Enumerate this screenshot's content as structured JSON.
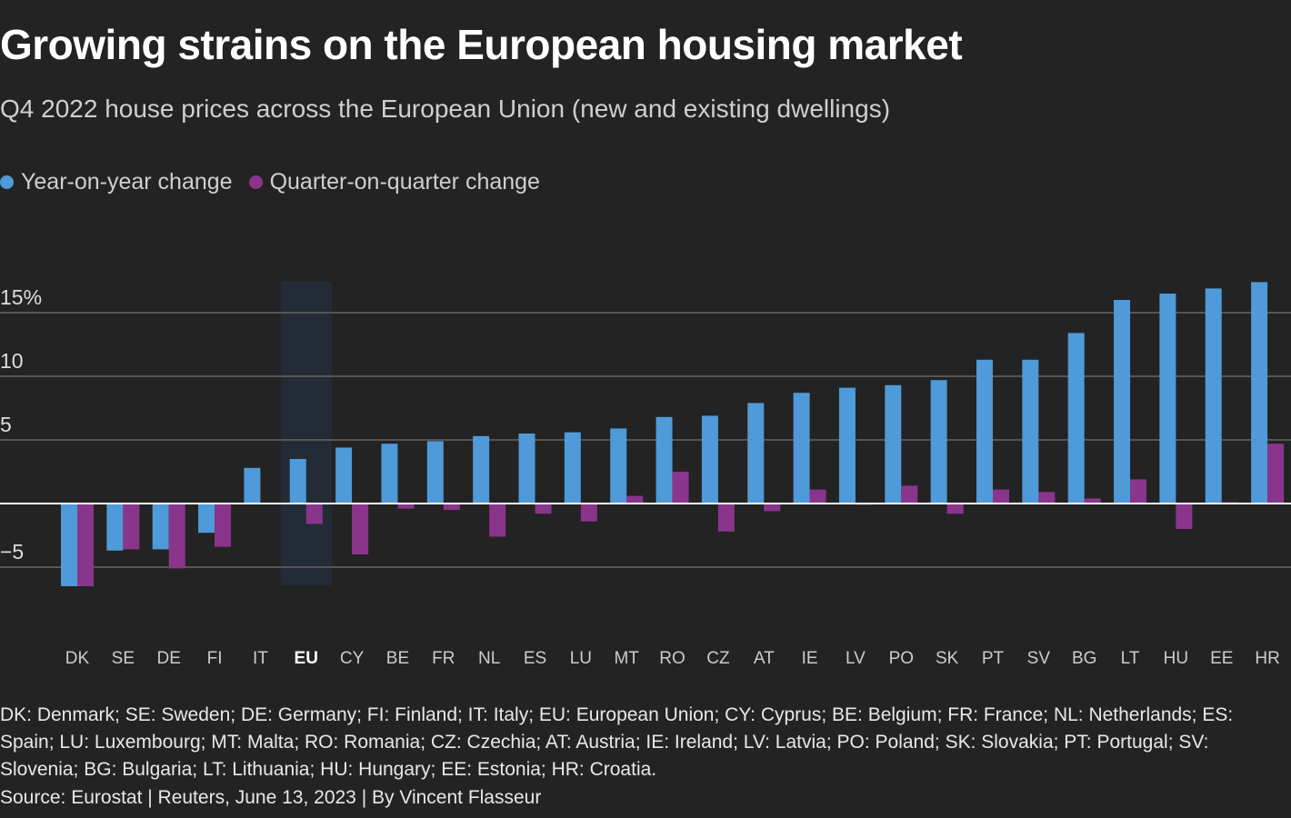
{
  "title": "Growing strains on the European housing market",
  "subtitle": "Q4 2022 house prices across the European Union (new and existing dwellings)",
  "legend": [
    {
      "label": "Year-on-year change",
      "color": "#4f9ad8"
    },
    {
      "label": "Quarter-on-quarter change",
      "color": "#8a358c"
    }
  ],
  "notes": "DK: Denmark; SE: Sweden; DE: Germany; FI: Finland; IT: Italy; EU: European Union; CY: Cyprus; BE: Belgium; FR: France; NL: Netherlands; ES: Spain; LU: Luxembourg; MT: Malta; RO: Romania; CZ: Czechia; AT: Austria; IE: Ireland; LV: Latvia; PO: Poland; SK: Slovakia; PT: Portugal; SV: Slovenia; BG: Bulgaria; LT: Lithuania; HU: Hungary; EE: Estonia; HR: Croatia.",
  "source": "Source: Eurostat | Reuters, June 13, 2023 | By Vincent Flasseur",
  "chart_data": {
    "type": "bar",
    "categories": [
      "DK",
      "SE",
      "DE",
      "FI",
      "IT",
      "EU",
      "CY",
      "BE",
      "FR",
      "NL",
      "ES",
      "LU",
      "MT",
      "RO",
      "CZ",
      "AT",
      "IE",
      "LV",
      "PO",
      "SK",
      "PT",
      "SV",
      "BG",
      "LT",
      "HU",
      "EE",
      "HR"
    ],
    "highlight": "EU",
    "series": [
      {
        "name": "Year-on-year change",
        "color": "#4f9ad8",
        "values": [
          -6.5,
          -3.7,
          -3.6,
          -2.3,
          2.8,
          3.5,
          4.4,
          4.7,
          4.9,
          5.3,
          5.5,
          5.6,
          5.9,
          6.8,
          6.9,
          7.9,
          8.7,
          9.1,
          9.3,
          9.7,
          11.3,
          11.3,
          13.4,
          16.0,
          16.5,
          16.9,
          17.4
        ]
      },
      {
        "name": "Quarter-on-quarter change",
        "color": "#8a358c",
        "values": [
          -6.5,
          -3.6,
          -5.1,
          -3.4,
          0.0,
          -1.6,
          -4.0,
          -0.4,
          -0.5,
          -2.6,
          -0.8,
          -1.4,
          0.6,
          2.5,
          -2.2,
          -0.6,
          1.1,
          -0.1,
          1.4,
          -0.8,
          1.1,
          0.9,
          0.4,
          1.9,
          -2.0,
          0.1,
          4.7
        ]
      }
    ],
    "yticks": [
      {
        "value": 15,
        "label": "15%"
      },
      {
        "value": 10,
        "label": "10"
      },
      {
        "value": 5,
        "label": "5"
      },
      {
        "value": -5,
        "label": "−5"
      }
    ],
    "ylim": [
      -6.5,
      17.5
    ],
    "grid": true,
    "legend_position": "top-left"
  }
}
